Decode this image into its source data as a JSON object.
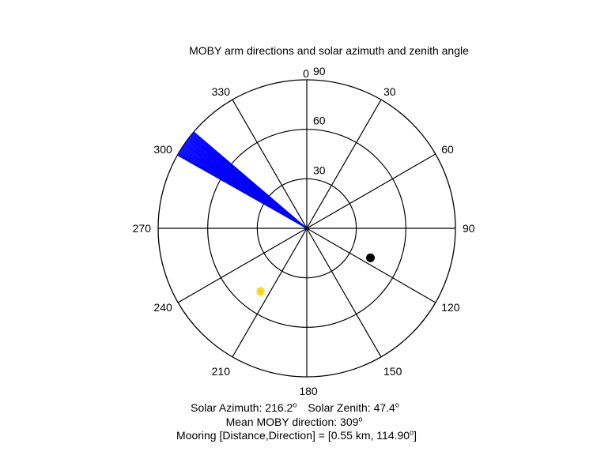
{
  "chart_data": {
    "type": "polar",
    "title": "MOBY arm directions and solar azimuth and zenith angle",
    "angular_ticks": [
      "0",
      "30",
      "60",
      "90",
      "120",
      "150",
      "180",
      "210",
      "240",
      "270",
      "300",
      "330"
    ],
    "radial_ticks": [
      "30",
      "60",
      "90"
    ],
    "radial_max": 90,
    "moby_arm_directions": {
      "color": "#0000ff",
      "min_deg": 299.5,
      "max_deg": 310.5,
      "length": 90,
      "series": [
        {
          "angle": 299.5
        },
        {
          "angle": 299.8
        },
        {
          "angle": 300.1
        },
        {
          "angle": 300.4
        },
        {
          "angle": 300.7
        },
        {
          "angle": 301.0
        },
        {
          "angle": 301.3
        },
        {
          "angle": 301.6
        },
        {
          "angle": 301.9
        },
        {
          "angle": 302.2
        },
        {
          "angle": 302.5
        },
        {
          "angle": 302.8
        },
        {
          "angle": 303.1
        },
        {
          "angle": 303.4
        },
        {
          "angle": 303.7
        },
        {
          "angle": 304.0
        },
        {
          "angle": 304.3
        },
        {
          "angle": 304.6
        },
        {
          "angle": 304.9
        },
        {
          "angle": 305.2
        },
        {
          "angle": 305.5
        },
        {
          "angle": 305.8
        },
        {
          "angle": 306.1
        },
        {
          "angle": 306.4
        },
        {
          "angle": 306.7
        },
        {
          "angle": 307.0
        },
        {
          "angle": 307.3
        },
        {
          "angle": 307.6
        },
        {
          "angle": 307.9
        },
        {
          "angle": 308.2
        },
        {
          "angle": 308.5
        },
        {
          "angle": 308.8
        },
        {
          "angle": 309.1
        },
        {
          "angle": 309.4
        },
        {
          "angle": 309.7
        },
        {
          "angle": 310.0
        },
        {
          "angle": 310.3
        },
        {
          "angle": 310.5
        }
      ]
    },
    "mooring_point": {
      "angle": 114.9,
      "radius": 42.5,
      "color": "#000000"
    },
    "sun_point": {
      "angle": 216.2,
      "radius": 47.4,
      "color": "#ffd700"
    }
  },
  "captions": {
    "solar_azimuth": "Solar Azimuth: 216.2",
    "solar_zenith": "Solar Zenith: 47.4",
    "mean_direction": "Mean MOBY direction: 309",
    "mooring_prefix": "Mooring [Distance,Direction] = [0.55 km, 114.90",
    "mooring_suffix": "]",
    "degree_symbol": "o"
  }
}
